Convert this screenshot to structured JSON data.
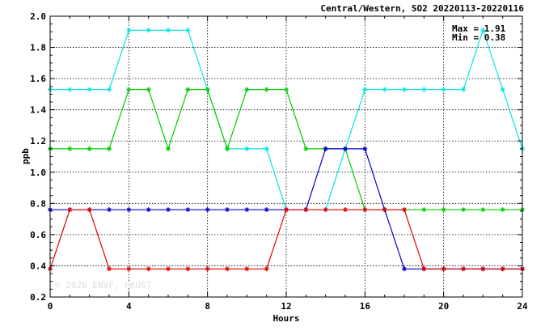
{
  "chart_data": {
    "type": "line",
    "title": "Central/Western, SO2 20220113-20220116",
    "xlabel": "Hours",
    "ylabel": "ppb",
    "xlim": [
      0,
      24
    ],
    "ylim": [
      0.2,
      2.0
    ],
    "xticks": [
      0,
      4,
      8,
      12,
      16,
      20,
      24
    ],
    "yticks": [
      0.2,
      0.4,
      0.6,
      0.8,
      1.0,
      1.2,
      1.4,
      1.6,
      1.8,
      2.0
    ],
    "xtick_labels": [
      "0",
      "4",
      "8",
      "12",
      "16",
      "20",
      "24"
    ],
    "ytick_labels": [
      "0.2",
      "0.4",
      "0.6",
      "0.8",
      "1.0",
      "1.2",
      "1.4",
      "1.6",
      "1.8",
      "2.0"
    ],
    "grid": true,
    "stats": {
      "max_label": "Max = 1.91",
      "min_label": "Min = 0.38"
    },
    "watermark": "© 2026 ENVF, HKUST",
    "series": [
      {
        "color": "#00e5e5",
        "x": [
          0,
          1,
          2,
          3,
          4,
          5,
          6,
          7,
          8,
          9,
          10,
          11,
          12,
          13,
          14,
          15,
          16,
          17,
          18,
          19,
          20,
          21,
          22,
          23,
          24
        ],
        "y": [
          1.53,
          1.53,
          1.53,
          1.53,
          1.91,
          1.91,
          1.91,
          1.91,
          1.53,
          1.15,
          1.15,
          1.15,
          0.76,
          0.76,
          0.76,
          1.15,
          1.53,
          1.53,
          1.53,
          1.53,
          1.53,
          1.53,
          1.91,
          1.53,
          1.15
        ]
      },
      {
        "color": "#00cc00",
        "x": [
          0,
          1,
          2,
          3,
          4,
          5,
          6,
          7,
          8,
          9,
          10,
          11,
          12,
          13,
          14,
          15,
          16,
          17,
          18,
          19,
          20,
          21,
          22,
          23,
          24
        ],
        "y": [
          1.15,
          1.15,
          1.15,
          1.15,
          1.53,
          1.53,
          1.15,
          1.53,
          1.53,
          1.15,
          1.53,
          1.53,
          1.53,
          1.15,
          1.15,
          1.15,
          0.76,
          0.76,
          0.76,
          0.76,
          0.76,
          0.76,
          0.76,
          0.76,
          0.76
        ]
      },
      {
        "color": "#0000cc",
        "x": [
          0,
          1,
          2,
          3,
          4,
          5,
          6,
          7,
          8,
          9,
          10,
          11,
          12,
          13,
          14,
          15,
          16,
          17,
          18,
          19,
          20,
          21,
          22,
          23,
          24
        ],
        "y": [
          0.76,
          0.76,
          0.76,
          0.76,
          0.76,
          0.76,
          0.76,
          0.76,
          0.76,
          0.76,
          0.76,
          0.76,
          0.76,
          0.76,
          1.15,
          1.15,
          1.15,
          0.76,
          0.38,
          0.38,
          0.38,
          0.38,
          0.38,
          0.38,
          0.38
        ]
      },
      {
        "color": "#dd0000",
        "x": [
          0,
          1,
          2,
          3,
          4,
          5,
          6,
          7,
          8,
          9,
          10,
          11,
          12,
          13,
          14,
          15,
          16,
          17,
          18,
          19,
          20,
          21,
          22,
          23,
          24
        ],
        "y": [
          0.38,
          0.76,
          0.76,
          0.38,
          0.38,
          0.38,
          0.38,
          0.38,
          0.38,
          0.38,
          0.38,
          0.38,
          0.76,
          0.76,
          0.76,
          0.76,
          0.76,
          0.76,
          0.76,
          0.38,
          0.38,
          0.38,
          0.38,
          0.38,
          0.38
        ]
      }
    ]
  }
}
